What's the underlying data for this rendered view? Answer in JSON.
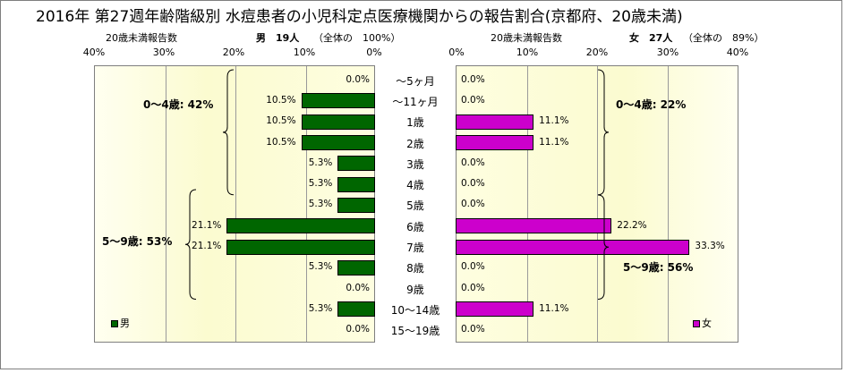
{
  "chart_data": {
    "type": "bar",
    "title": "2016年 第27週年齢階級別 水痘患者の小児科定点医療機関からの報告割合(京都府、20歳未満)",
    "categories": [
      "～5ヶ月",
      "～11ヶ月",
      "1歳",
      "2歳",
      "3歳",
      "4歳",
      "5歳",
      "6歳",
      "7歳",
      "8歳",
      "9歳",
      "10～14歳",
      "15～19歳"
    ],
    "xlim": [
      0,
      40
    ],
    "ticks": [
      "40%",
      "30%",
      "20%",
      "10%",
      "0%"
    ],
    "ticks_right": [
      "0%",
      "10%",
      "20%",
      "30%",
      "40%"
    ],
    "series": [
      {
        "name": "男",
        "axis_label": "20歳未満報告数",
        "header": "男　19人",
        "header_note": "（全体の　100%）",
        "color": "#006600",
        "values": [
          0.0,
          10.5,
          10.5,
          10.5,
          5.3,
          5.3,
          5.3,
          21.1,
          21.1,
          5.3,
          0.0,
          5.3,
          0.0
        ],
        "labels": [
          "0.0%",
          "10.5%",
          "10.5%",
          "10.5%",
          "5.3%",
          "5.3%",
          "5.3%",
          "21.1%",
          "21.1%",
          "5.3%",
          "0.0%",
          "5.3%",
          "0.0%"
        ],
        "groups": [
          {
            "label": "0～4歳: 42%",
            "from": 0,
            "to": 5
          },
          {
            "label": "5～9歳: 53%",
            "from": 6,
            "to": 10
          }
        ]
      },
      {
        "name": "女",
        "axis_label": "20歳未満報告数",
        "header": "女　27人",
        "header_note": "（全体の　89%）",
        "color": "#cc00cc",
        "values": [
          0.0,
          0.0,
          11.1,
          11.1,
          0.0,
          0.0,
          0.0,
          22.2,
          33.3,
          0.0,
          0.0,
          11.1,
          0.0
        ],
        "labels": [
          "0.0%",
          "0.0%",
          "11.1%",
          "11.1%",
          "0.0%",
          "0.0%",
          "0.0%",
          "22.2%",
          "33.3%",
          "0.0%",
          "0.0%",
          "11.1%",
          "0.0%"
        ],
        "groups": [
          {
            "label": "0～4歳: 22%",
            "from": 0,
            "to": 5
          },
          {
            "label": "5～9歳: 56%",
            "from": 6,
            "to": 10
          }
        ]
      }
    ],
    "grid": true
  }
}
